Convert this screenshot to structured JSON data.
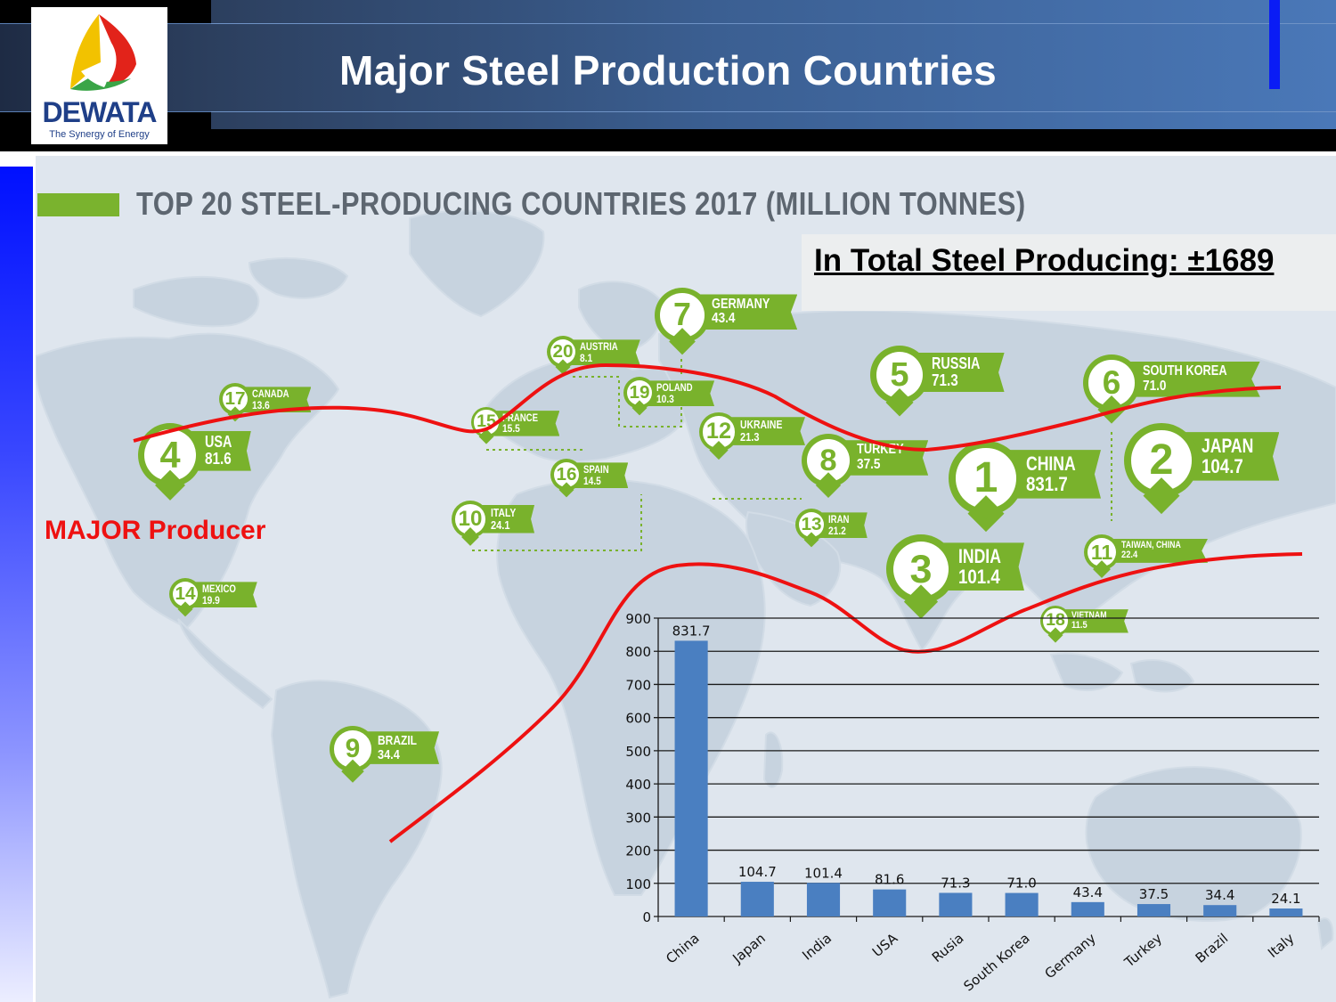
{
  "header": {
    "title": "Major Steel Production Countries",
    "logo_name": "DEWATA",
    "logo_tagline": "The Synergy of Energy"
  },
  "infographic": {
    "subtitle": "TOP 20 STEEL-PRODUCING COUNTRIES 2017 (MILLION TONNES)",
    "countries": [
      {
        "rank": "1",
        "name": "CHINA",
        "value": "831.7"
      },
      {
        "rank": "2",
        "name": "JAPAN",
        "value": "104.7"
      },
      {
        "rank": "3",
        "name": "INDIA",
        "value": "101.4"
      },
      {
        "rank": "4",
        "name": "USA",
        "value": "81.6"
      },
      {
        "rank": "5",
        "name": "RUSSIA",
        "value": "71.3"
      },
      {
        "rank": "6",
        "name": "SOUTH KOREA",
        "value": "71.0"
      },
      {
        "rank": "7",
        "name": "GERMANY",
        "value": "43.4"
      },
      {
        "rank": "8",
        "name": "TURKEY",
        "value": "37.5"
      },
      {
        "rank": "9",
        "name": "BRAZIL",
        "value": "34.4"
      },
      {
        "rank": "10",
        "name": "ITALY",
        "value": "24.1"
      },
      {
        "rank": "11",
        "name": "TAIWAN, CHINA",
        "value": "22.4"
      },
      {
        "rank": "12",
        "name": "UKRAINE",
        "value": "21.3"
      },
      {
        "rank": "13",
        "name": "IRAN",
        "value": "21.2"
      },
      {
        "rank": "14",
        "name": "MEXICO",
        "value": "19.9"
      },
      {
        "rank": "15",
        "name": "FRANCE",
        "value": "15.5"
      },
      {
        "rank": "16",
        "name": "SPAIN",
        "value": "14.5"
      },
      {
        "rank": "17",
        "name": "CANADA",
        "value": "13.6"
      },
      {
        "rank": "18",
        "name": "VIETNAM",
        "value": "11.5"
      },
      {
        "rank": "19",
        "name": "POLAND",
        "value": "10.3"
      },
      {
        "rank": "20",
        "name": "AUSTRIA",
        "value": "8.1"
      }
    ]
  },
  "callouts": {
    "total": "In Total Steel Producing: ±1689",
    "major_producer": "MAJOR Producer"
  },
  "colors": {
    "accent_green": "#79b22c",
    "bar_blue": "#4a7fc1",
    "annotation_red": "#ee1111"
  },
  "chart_data": {
    "type": "bar",
    "categories": [
      "China",
      "Japan",
      "India",
      "USA",
      "Rusia",
      "South Korea",
      "Germany",
      "Turkey",
      "Brazil",
      "Italy"
    ],
    "values": [
      831.7,
      104.7,
      101.4,
      81.6,
      71.3,
      71.0,
      43.4,
      37.5,
      34.4,
      24.1
    ],
    "data_labels": [
      "831.7",
      "104.7",
      "101.4",
      "81.6",
      "71.3",
      "71.0",
      "43.4",
      "37.5",
      "34.4",
      "24.1"
    ],
    "ylim": [
      0,
      900
    ],
    "yticks": [
      0,
      100,
      200,
      300,
      400,
      500,
      600,
      700,
      800,
      900
    ],
    "grid": true,
    "legend": "none"
  }
}
